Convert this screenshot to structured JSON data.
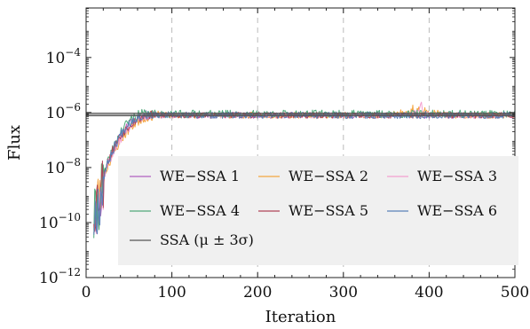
{
  "chart_data": {
    "type": "line",
    "xlabel": "Iteration",
    "ylabel": "Flux",
    "xlim": [
      0,
      500
    ],
    "ylim_log10": [
      -12,
      -2.2
    ],
    "y_scale": "log",
    "x_ticks": [
      0,
      100,
      200,
      300,
      400,
      500
    ],
    "x_tick_labels": [
      "0",
      "100",
      "200",
      "300",
      "400",
      "500"
    ],
    "y_ticks_log10": [
      -12,
      -10,
      -8,
      -6,
      -4
    ],
    "y_tick_labels": [
      {
        "base": "10",
        "exp": "−12"
      },
      {
        "base": "10",
        "exp": "−10"
      },
      {
        "base": "10",
        "exp": "−8"
      },
      {
        "base": "10",
        "exp": "−6"
      },
      {
        "base": "10",
        "exp": "−4"
      }
    ],
    "vertical_gridlines": [
      100,
      200,
      300,
      400,
      500
    ],
    "grid_style": "dashed vertical",
    "legend_placement": "lower-right inside, 3 columns",
    "ssa": {
      "name": "SSA (μ ± 3σ)",
      "mean": 8.5e-07,
      "lower": 7.6e-07,
      "upper": 9.5e-07,
      "color": "#555555"
    },
    "series": [
      {
        "name": "WE−SSA 1",
        "color": "#b060c0",
        "start_x": 9,
        "rise_end_x": 75,
        "start_log10": -9.6,
        "plateau_log10": -6.1,
        "noise": 0.11,
        "seed": 11
      },
      {
        "name": "WE−SSA 2",
        "color": "#f4a640",
        "start_x": 9,
        "rise_end_x": 85,
        "start_log10": -9.4,
        "plateau_log10": -6.1,
        "noise": 0.11,
        "seed": 23,
        "bumps": [
          {
            "x0": 350,
            "x1": 420,
            "amp": 0.35
          }
        ]
      },
      {
        "name": "WE−SSA 3",
        "color": "#f4a0d0",
        "start_x": 9,
        "rise_end_x": 80,
        "start_log10": -9.5,
        "plateau_log10": -6.1,
        "noise": 0.1,
        "seed": 37,
        "bumps": [
          {
            "x0": 380,
            "x1": 400,
            "amp": 0.55
          }
        ]
      },
      {
        "name": "WE−SSA 4",
        "color": "#4fa87a",
        "start_x": 9,
        "rise_end_x": 70,
        "start_log10": -9.8,
        "plateau_log10": -6.05,
        "noise": 0.14,
        "seed": 41
      },
      {
        "name": "WE−SSA 5",
        "color": "#b04458",
        "start_x": 9,
        "rise_end_x": 78,
        "start_log10": -9.3,
        "plateau_log10": -6.1,
        "noise": 0.11,
        "seed": 53
      },
      {
        "name": "WE−SSA 6",
        "color": "#5a80b8",
        "start_x": 9,
        "rise_end_x": 72,
        "start_log10": -9.7,
        "plateau_log10": -6.1,
        "noise": 0.12,
        "seed": 67
      }
    ],
    "legend_rows": [
      [
        "WE−SSA 1",
        "WE−SSA 2",
        "WE−SSA 3"
      ],
      [
        "WE−SSA 4",
        "WE−SSA 5",
        "WE−SSA 6"
      ],
      [
        "SSA (μ ± 3σ)"
      ]
    ]
  }
}
